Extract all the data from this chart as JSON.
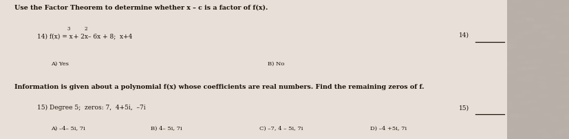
{
  "bg_color": "#b8b0a8",
  "paper_color": "#e8e0d8",
  "title1": "Use the Factor Theorem to determine whether x – c is a factor of f(x).",
  "q14_A": "A) Yes",
  "q14_B": "B) No",
  "q14_num": "14)",
  "title2": "Information is given about a polynomial f(x) whose coefficients are real numbers. Find the remaining zeros of f.",
  "q15_label": "15) Degree 5;  zeros: 7,  4+5i,  –7i",
  "q15_A": "A) –4– 5i, 7i",
  "q15_B": "B) 4– 5i, 7i",
  "q15_C": "C) –7, 4 – 5i, 7i",
  "q15_D": "D) –4 +5i, 7i",
  "q15_num": "15)",
  "font_size_title": 6.8,
  "font_size_q": 6.5,
  "font_size_ans": 6.0,
  "font_size_sup": 5.0,
  "text_color": "#1a1208"
}
